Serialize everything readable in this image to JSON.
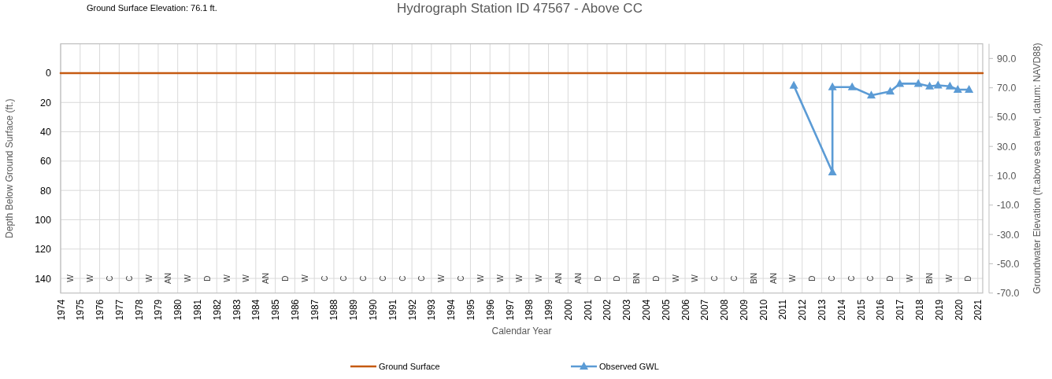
{
  "chart_data": {
    "type": "line",
    "title": "Hydrograph Station ID 47567 - Above CC",
    "xlabel": "Calendar Year",
    "ylabel": "Depth Below Ground Surface  (ft.)",
    "y2label": "Groundwater Elevation (ft.above sea level, datum: NAVD88)",
    "xlim": [
      1974,
      2021.25
    ],
    "xticks": [
      1974,
      1975,
      1976,
      1977,
      1978,
      1979,
      1980,
      1981,
      1982,
      1983,
      1984,
      1985,
      1986,
      1987,
      1988,
      1989,
      1990,
      1991,
      1992,
      1993,
      1994,
      1995,
      1996,
      1997,
      1998,
      1999,
      2000,
      2001,
      2002,
      2003,
      2004,
      2005,
      2006,
      2007,
      2008,
      2009,
      2010,
      2011,
      2012,
      2013,
      2014,
      2015,
      2016,
      2017,
      2018,
      2019,
      2020,
      2021
    ],
    "ylim": [
      150,
      -20
    ],
    "yticks": [
      0,
      20,
      40,
      60,
      80,
      100,
      120,
      140
    ],
    "y2lim": [
      -70,
      100
    ],
    "y2ticks": [
      {
        "value": 90,
        "label": "90.0"
      },
      {
        "value": 70,
        "label": "70.0"
      },
      {
        "value": 50,
        "label": "50.0"
      },
      {
        "value": 30,
        "label": "30.0"
      },
      {
        "value": 10,
        "label": "10.0"
      },
      {
        "value": -10,
        "label": "-10.0"
      },
      {
        "value": -30,
        "label": "-30.0"
      },
      {
        "value": -50,
        "label": "-50.0"
      },
      {
        "value": -70,
        "label": "-70.0"
      }
    ],
    "grid": true,
    "legend": "bottom",
    "series": [
      {
        "name": "Ground Surface",
        "color": "#c55a11",
        "marker": "none",
        "x": [
          1974,
          2021.25
        ],
        "values": [
          0,
          0
        ]
      },
      {
        "name": "Observed GWL",
        "color": "#5b9bd5",
        "marker": "triangle",
        "x": [
          2011.57,
          2013.55,
          2013.55,
          2014.56,
          2015.54,
          2016.51,
          2017.0,
          2017.95,
          2018.53,
          2018.96,
          2019.57,
          2019.97,
          2020.55
        ],
        "values": [
          8.4,
          67.6,
          9.5,
          9.5,
          15.2,
          12.5,
          7.2,
          7.2,
          9.0,
          8.3,
          9.0,
          11.3,
          11.3
        ]
      }
    ],
    "subtitle": "Ground Surface Elevation: 76.1 ft.",
    "annotations": [
      "W",
      "W",
      "C",
      "C",
      "W",
      "AN",
      "W",
      "D",
      "W",
      "W",
      "AN",
      "D",
      "W",
      "C",
      "C",
      "C",
      "C",
      "C",
      "C",
      "W",
      "C",
      "W",
      "W",
      "W",
      "W",
      "AN",
      "AN",
      "D",
      "D",
      "BN",
      "D",
      "W",
      "W",
      "C",
      "C",
      "BN",
      "AN",
      "W",
      "D",
      "C",
      "C",
      "C",
      "D",
      "W",
      "BN",
      "W",
      "D"
    ]
  }
}
